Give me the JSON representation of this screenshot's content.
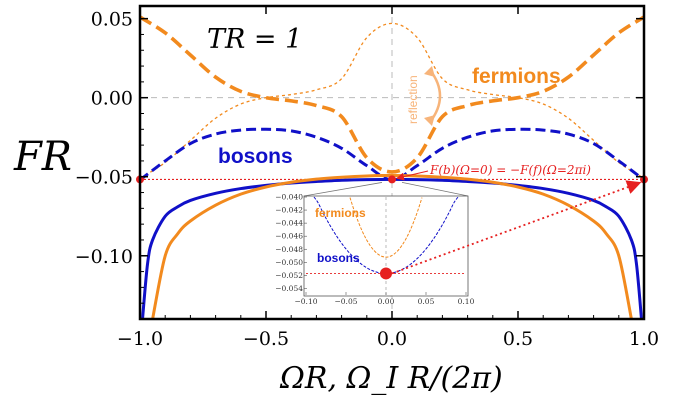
{
  "chart_data": {
    "type": "line",
    "xlabel": "ΩR,  Ω_I R/(2π)",
    "ylabel": "FR",
    "annotation_title": "TR = 1",
    "xlim": [
      -1.0,
      1.0
    ],
    "ylim": [
      -0.14,
      0.058
    ],
    "xticks": [
      -1.0,
      -0.5,
      0.0,
      0.5,
      1.0
    ],
    "xtick_labels": [
      "−1.0",
      "−0.5",
      "0.0",
      "0.5",
      "1.0"
    ],
    "yticks": [
      0.05,
      0.0,
      -0.05,
      -0.1
    ],
    "ytick_labels": [
      "0.05",
      "0.00",
      "−0.05",
      "−0.10"
    ],
    "grid": false,
    "series": [
      {
        "name": "fermions",
        "style": "thick-dashed",
        "color": "#F28A1E",
        "x": [
          -1.0,
          -0.9,
          -0.8,
          -0.7,
          -0.6,
          -0.5,
          -0.4,
          -0.3,
          -0.2,
          -0.1,
          0.0,
          0.1,
          0.2,
          0.3,
          0.4,
          0.5,
          0.6,
          0.7,
          0.8,
          0.9,
          1.0
        ],
        "y": [
          0.051,
          0.041,
          0.027,
          0.013,
          0.004,
          0.0,
          -0.002,
          -0.005,
          -0.012,
          -0.038,
          -0.047,
          -0.038,
          -0.012,
          -0.005,
          -0.002,
          0.0,
          0.004,
          0.013,
          0.027,
          0.041,
          0.051
        ]
      },
      {
        "name": "fermions (reflection)",
        "style": "thin-dashed",
        "color": "#F28A1E",
        "x": [
          -1.0,
          -0.9,
          -0.8,
          -0.7,
          -0.6,
          -0.5,
          -0.4,
          -0.3,
          -0.2,
          -0.1,
          0.0,
          0.1,
          0.2,
          0.3,
          0.4,
          0.5,
          0.6,
          0.7,
          0.8,
          0.9,
          1.0
        ],
        "y": [
          -0.051,
          -0.041,
          -0.027,
          -0.013,
          -0.004,
          0.0,
          0.002,
          0.005,
          0.012,
          0.038,
          0.047,
          0.038,
          0.012,
          0.005,
          0.002,
          0.0,
          -0.004,
          -0.013,
          -0.027,
          -0.041,
          -0.051
        ]
      },
      {
        "name": "bosons",
        "style": "dashed",
        "color": "#1010C8",
        "x": [
          -1.0,
          -0.9,
          -0.8,
          -0.7,
          -0.6,
          -0.5,
          -0.4,
          -0.3,
          -0.2,
          -0.1,
          0.0,
          0.1,
          0.2,
          0.3,
          0.4,
          0.5,
          0.6,
          0.7,
          0.8,
          0.9,
          1.0
        ],
        "y": [
          -0.052,
          -0.04,
          -0.029,
          -0.023,
          -0.0205,
          -0.02,
          -0.021,
          -0.025,
          -0.032,
          -0.043,
          -0.052,
          -0.043,
          -0.032,
          -0.025,
          -0.021,
          -0.02,
          -0.0205,
          -0.023,
          -0.029,
          -0.04,
          -0.052
        ]
      },
      {
        "name": "bosons (imaginary)",
        "style": "solid",
        "color": "#1010C8",
        "x": [
          -0.99,
          -0.97,
          -0.95,
          -0.9,
          -0.85,
          -0.8,
          -0.7,
          -0.6,
          -0.5,
          -0.4,
          -0.3,
          -0.2,
          -0.1,
          0.0,
          0.1,
          0.2,
          0.3,
          0.4,
          0.5,
          0.6,
          0.7,
          0.8,
          0.85,
          0.9,
          0.95,
          0.97,
          0.99
        ],
        "y": [
          -0.14,
          -0.105,
          -0.09,
          -0.075,
          -0.069,
          -0.065,
          -0.0605,
          -0.0575,
          -0.0555,
          -0.054,
          -0.053,
          -0.0522,
          -0.0518,
          -0.0517,
          -0.0518,
          -0.0522,
          -0.053,
          -0.054,
          -0.0555,
          -0.0575,
          -0.0605,
          -0.065,
          -0.069,
          -0.075,
          -0.09,
          -0.105,
          -0.14
        ]
      },
      {
        "name": "fermions (imaginary)",
        "style": "solid",
        "color": "#F28A1E",
        "x": [
          -0.95,
          -0.9,
          -0.85,
          -0.8,
          -0.7,
          -0.6,
          -0.5,
          -0.4,
          -0.3,
          -0.2,
          -0.1,
          0.0,
          0.1,
          0.2,
          0.3,
          0.4,
          0.5,
          0.6,
          0.7,
          0.8,
          0.85,
          0.9,
          0.95
        ],
        "y": [
          -0.14,
          -0.1,
          -0.086,
          -0.078,
          -0.068,
          -0.061,
          -0.0565,
          -0.0535,
          -0.0515,
          -0.0503,
          -0.0495,
          -0.0492,
          -0.0495,
          -0.0503,
          -0.0515,
          -0.0535,
          -0.0565,
          -0.061,
          -0.068,
          -0.078,
          -0.086,
          -0.1,
          -0.14
        ]
      }
    ],
    "reference_lines": [
      {
        "axis": "y",
        "value": 0.0,
        "style": "dashed",
        "color": "#BBBBBB"
      },
      {
        "axis": "x",
        "value": 0.0,
        "style": "dashed",
        "color": "#BBBBBB"
      },
      {
        "axis": "y",
        "value": -0.0517,
        "style": "dotted",
        "color": "#E62020"
      }
    ],
    "points": [
      {
        "x": -1.0,
        "y": -0.0517,
        "color": "#E62020"
      },
      {
        "x": 0.0,
        "y": -0.0517,
        "color": "#E62020"
      },
      {
        "x": 1.0,
        "y": -0.0517,
        "color": "#E62020"
      }
    ],
    "labels": {
      "fermions": "fermions",
      "bosons": "bosons",
      "reflection": "reflection",
      "equation": "F(b)(Ω=0) = −F(f)(Ω=2πi)"
    },
    "inset": {
      "xlim": [
        -0.1,
        0.1
      ],
      "ylim": [
        -0.055,
        -0.04
      ],
      "xticks": [
        -0.1,
        -0.05,
        0.0,
        0.05,
        0.1
      ],
      "xtick_labels": [
        "−0.10",
        "−0.05",
        "0.00",
        "0.05",
        "0.10"
      ],
      "yticks": [
        -0.04,
        -0.042,
        -0.044,
        -0.046,
        -0.048,
        -0.05,
        -0.052,
        -0.054
      ],
      "ytick_labels": [
        "−0.040",
        "−0.042",
        "−0.044",
        "−0.046",
        "−0.048",
        "−0.050",
        "−0.052",
        "−0.054"
      ],
      "labels": {
        "fermions": "fermions",
        "bosons": "bosons"
      },
      "series": [
        {
          "name": "fermions",
          "color": "#F28A1E",
          "vertex": [
            0.0,
            -0.0492
          ],
          "curvature": 4.5
        },
        {
          "name": "bosons",
          "color": "#1010C8",
          "vertex": [
            0.0,
            -0.0517
          ],
          "curvature": 1.5
        }
      ],
      "marker": {
        "x": 0.0,
        "y": -0.0517,
        "color": "#E62020"
      }
    }
  }
}
